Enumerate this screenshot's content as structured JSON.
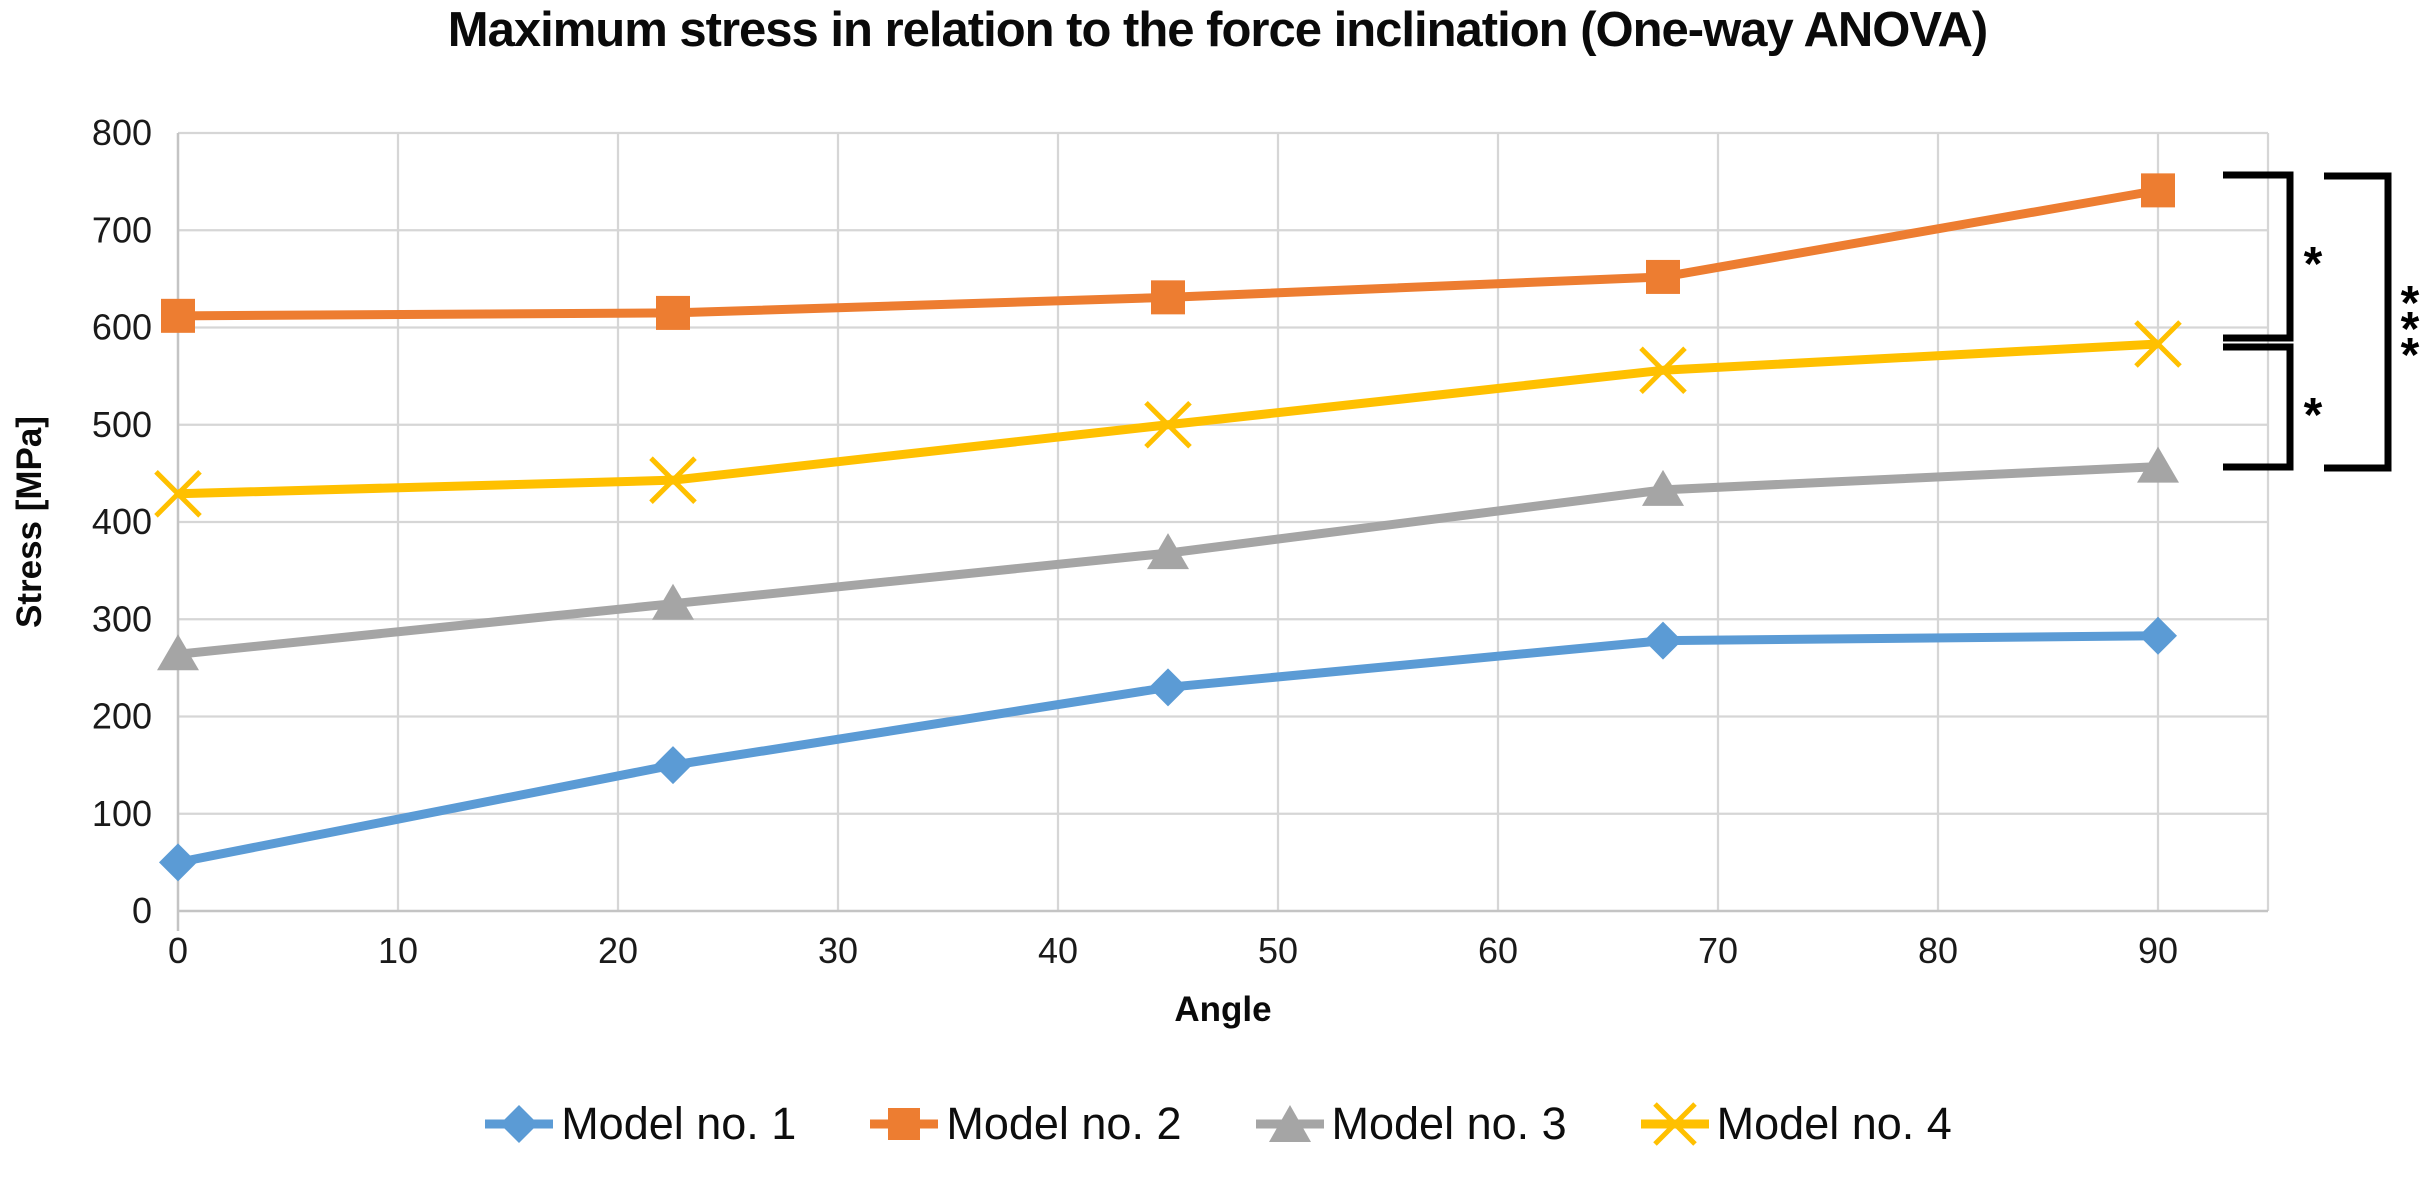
{
  "title": "Maximum stress in relation to the force inclination (One-way ANOVA)",
  "chart_data": {
    "type": "line",
    "title": "Maximum stress in relation to the force inclination (One-way ANOVA)",
    "xlabel": "Angle",
    "ylabel": "Stress [MPa]",
    "x": [
      0,
      22.5,
      45,
      67.5,
      90
    ],
    "series": [
      {
        "name": "Model no. 1",
        "color": "#5B9BD5",
        "marker": "diamond",
        "values": [
          50,
          150,
          230,
          278,
          283
        ]
      },
      {
        "name": "Model no. 2",
        "color": "#ED7D31",
        "marker": "square",
        "values": [
          612,
          615,
          631,
          652,
          741
        ]
      },
      {
        "name": "Model no. 3",
        "color": "#A5A5A5",
        "marker": "triangle",
        "values": [
          264,
          316,
          368,
          433,
          457
        ]
      },
      {
        "name": "Model no. 4",
        "color": "#FFC000",
        "marker": "x",
        "values": [
          429,
          443,
          500,
          556,
          583
        ]
      }
    ],
    "xlim": [
      0,
      95
    ],
    "ylim": [
      0,
      800
    ],
    "x_ticks": [
      0,
      10,
      20,
      30,
      40,
      50,
      60,
      70,
      80,
      90
    ],
    "y_ticks": [
      0,
      100,
      200,
      300,
      400,
      500,
      600,
      700,
      800
    ],
    "grid": true,
    "grid_color": "#D6D6D6",
    "axis_color": "#C4C4C4",
    "tick_label_color": "#1a1a1a",
    "legend_position": "bottom",
    "annotations": [
      {
        "label": "*",
        "between": [
          "Model no. 2",
          "Model no. 4"
        ]
      },
      {
        "label": "*",
        "between": [
          "Model no. 4",
          "Model no. 3"
        ]
      },
      {
        "label": "***",
        "between": [
          "Model no. 2",
          "Model no. 3"
        ]
      }
    ]
  }
}
